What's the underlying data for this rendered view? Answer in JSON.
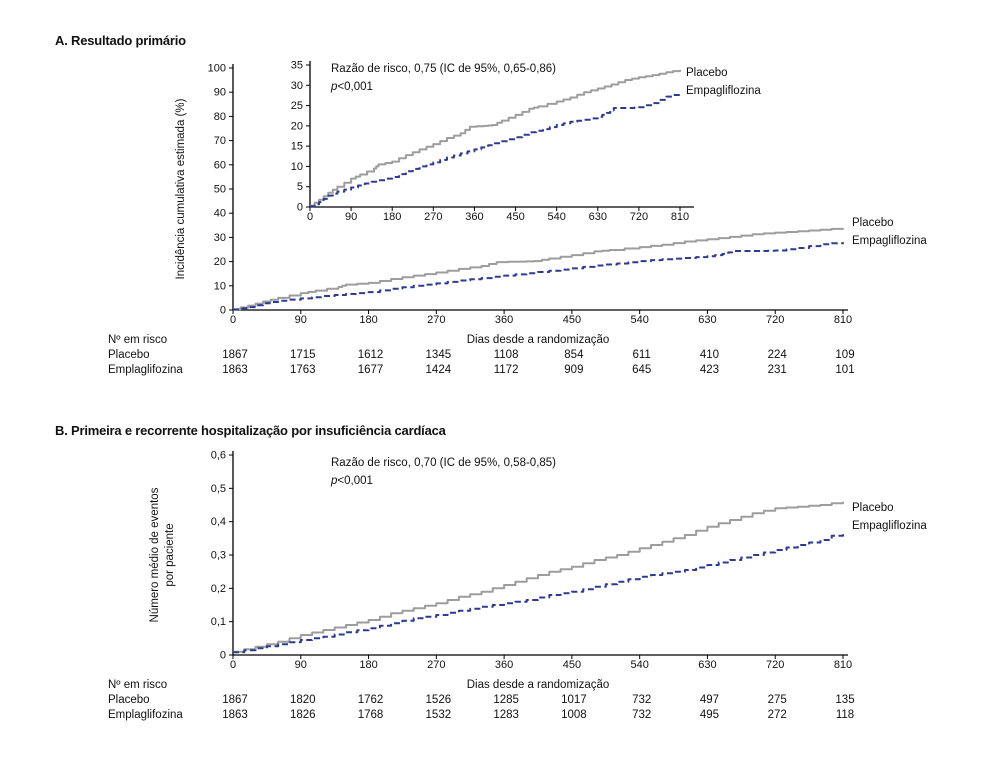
{
  "colors": {
    "placebo": "#9d9d9d",
    "empagliflozina": "#2e3a94",
    "axis": "#000000",
    "text": "#111111",
    "background": "#ffffff"
  },
  "chart_data": [
    {
      "id": "panel-a",
      "type": "line",
      "title": "A. Resultado primário",
      "xlabel": "Dias desde a randomização",
      "ylabel_lines": [
        "Incidência cumulativa estimada (%)"
      ],
      "xlim": [
        0,
        810
      ],
      "ylim": [
        0,
        100
      ],
      "xticks": [
        "0",
        "90",
        "180",
        "270",
        "360",
        "450",
        "540",
        "630",
        "720",
        "810"
      ],
      "yticks": [
        "0",
        "10",
        "20",
        "30",
        "40",
        "50",
        "60",
        "70",
        "80",
        "90",
        "100"
      ],
      "grid": false,
      "legend_position": "right-of-curve-ends",
      "annotation_lines": [
        "Razão de risco, 0,75 (IC de 95%, 0,65-0,86)",
        "p<0,001"
      ],
      "series": [
        {
          "name": "Placebo",
          "style": "solid",
          "color": "#9d9d9d",
          "points": [
            [
              0,
              0.3
            ],
            [
              20,
              1.8
            ],
            [
              40,
              3.5
            ],
            [
              60,
              5
            ],
            [
              90,
              7
            ],
            [
              110,
              8
            ],
            [
              140,
              9.5
            ],
            [
              150,
              10.5
            ],
            [
              180,
              11.2
            ],
            [
              210,
              12.8
            ],
            [
              240,
              14.2
            ],
            [
              270,
              15.5
            ],
            [
              300,
              17
            ],
            [
              330,
              18.2
            ],
            [
              350,
              19.8
            ],
            [
              380,
              20
            ],
            [
              400,
              20.2
            ],
            [
              420,
              21.3
            ],
            [
              450,
              22.7
            ],
            [
              480,
              24.2
            ],
            [
              500,
              24.8
            ],
            [
              540,
              26
            ],
            [
              570,
              27
            ],
            [
              600,
              28.3
            ],
            [
              630,
              29.2
            ],
            [
              660,
              30.2
            ],
            [
              690,
              31.3
            ],
            [
              720,
              32
            ],
            [
              750,
              32.5
            ],
            [
              780,
              33.2
            ],
            [
              810,
              33.8
            ]
          ]
        },
        {
          "name": "Empagliflozina",
          "style": "dashed",
          "color": "#2e3a94",
          "points": [
            [
              0,
              0.2
            ],
            [
              20,
              1.2
            ],
            [
              40,
              2.8
            ],
            [
              60,
              3.8
            ],
            [
              90,
              4.8
            ],
            [
              120,
              5.8
            ],
            [
              150,
              6.6
            ],
            [
              180,
              7.4
            ],
            [
              210,
              8.8
            ],
            [
              240,
              10
            ],
            [
              270,
              11
            ],
            [
              300,
              12.2
            ],
            [
              330,
              13.2
            ],
            [
              360,
              14.2
            ],
            [
              390,
              15.2
            ],
            [
              420,
              16.2
            ],
            [
              450,
              17.2
            ],
            [
              480,
              18.4
            ],
            [
              510,
              19.2
            ],
            [
              540,
              20.2
            ],
            [
              570,
              21
            ],
            [
              600,
              21.5
            ],
            [
              630,
              22.2
            ],
            [
              650,
              23.2
            ],
            [
              665,
              24.4
            ],
            [
              700,
              24.4
            ],
            [
              720,
              24.6
            ],
            [
              750,
              25.6
            ],
            [
              780,
              27.2
            ],
            [
              810,
              28
            ]
          ]
        }
      ],
      "inset": {
        "ylim": [
          0,
          35
        ],
        "yticks": [
          "0",
          "5",
          "10",
          "15",
          "20",
          "25",
          "30",
          "35"
        ],
        "xticks": [
          "0",
          "90",
          "180",
          "270",
          "360",
          "450",
          "540",
          "630",
          "720",
          "810"
        ]
      },
      "risk_table": {
        "header": "Nº em risco",
        "rows": [
          {
            "label": "Placebo",
            "values": [
              "1867",
              "1715",
              "1612",
              "1345",
              "1108",
              "854",
              "611",
              "410",
              "224",
              "109"
            ]
          },
          {
            "label": "Emplaglifozina",
            "values": [
              "1863",
              "1763",
              "1677",
              "1424",
              "1172",
              "909",
              "645",
              "423",
              "231",
              "101"
            ]
          }
        ]
      }
    },
    {
      "id": "panel-b",
      "type": "line",
      "title": "B. Primeira e recorrente hospitalização por insuficiência cardíaca",
      "xlabel": "Dias desde a randomização",
      "ylabel_lines": [
        "Número médio de eventos",
        "por paciente"
      ],
      "xlim": [
        0,
        810
      ],
      "ylim": [
        0,
        0.6
      ],
      "xticks": [
        "0",
        "90",
        "180",
        "270",
        "360",
        "450",
        "540",
        "630",
        "720",
        "810"
      ],
      "yticks": [
        "0",
        "0,1",
        "0,2",
        "0,3",
        "0,4",
        "0,5",
        "0,6"
      ],
      "grid": false,
      "legend_position": "right-of-curve-ends",
      "annotation_lines": [
        "Razão de risco, 0,70 (IC de 95%, 0,58-0,85)",
        "p<0,001"
      ],
      "series": [
        {
          "name": "Placebo",
          "style": "solid",
          "color": "#9d9d9d",
          "points": [
            [
              0,
              0.01
            ],
            [
              30,
              0.025
            ],
            [
              60,
              0.04
            ],
            [
              90,
              0.06
            ],
            [
              120,
              0.075
            ],
            [
              150,
              0.09
            ],
            [
              180,
              0.105
            ],
            [
              210,
              0.125
            ],
            [
              240,
              0.14
            ],
            [
              270,
              0.155
            ],
            [
              300,
              0.175
            ],
            [
              330,
              0.19
            ],
            [
              360,
              0.21
            ],
            [
              390,
              0.23
            ],
            [
              420,
              0.25
            ],
            [
              450,
              0.265
            ],
            [
              480,
              0.285
            ],
            [
              510,
              0.3
            ],
            [
              540,
              0.32
            ],
            [
              570,
              0.34
            ],
            [
              600,
              0.36
            ],
            [
              630,
              0.385
            ],
            [
              660,
              0.405
            ],
            [
              690,
              0.425
            ],
            [
              720,
              0.44
            ],
            [
              750,
              0.445
            ],
            [
              780,
              0.45
            ],
            [
              810,
              0.46
            ]
          ]
        },
        {
          "name": "Empagliflozina",
          "style": "dashed",
          "color": "#2e3a94",
          "points": [
            [
              0,
              0.008
            ],
            [
              30,
              0.02
            ],
            [
              60,
              0.032
            ],
            [
              90,
              0.045
            ],
            [
              120,
              0.055
            ],
            [
              150,
              0.068
            ],
            [
              180,
              0.08
            ],
            [
              210,
              0.095
            ],
            [
              240,
              0.11
            ],
            [
              270,
              0.12
            ],
            [
              300,
              0.133
            ],
            [
              330,
              0.145
            ],
            [
              360,
              0.155
            ],
            [
              390,
              0.165
            ],
            [
              420,
              0.18
            ],
            [
              450,
              0.19
            ],
            [
              480,
              0.205
            ],
            [
              510,
              0.22
            ],
            [
              540,
              0.235
            ],
            [
              570,
              0.245
            ],
            [
              600,
              0.255
            ],
            [
              630,
              0.27
            ],
            [
              660,
              0.285
            ],
            [
              690,
              0.3
            ],
            [
              720,
              0.315
            ],
            [
              750,
              0.33
            ],
            [
              780,
              0.345
            ],
            [
              810,
              0.37
            ]
          ]
        }
      ],
      "risk_table": {
        "header": "Nº em risco",
        "rows": [
          {
            "label": "Placebo",
            "values": [
              "1867",
              "1820",
              "1762",
              "1526",
              "1285",
              "1017",
              "732",
              "497",
              "275",
              "135"
            ]
          },
          {
            "label": "Emplaglifozina",
            "values": [
              "1863",
              "1826",
              "1768",
              "1532",
              "1283",
              "1008",
              "732",
              "495",
              "272",
              "118"
            ]
          }
        ]
      }
    }
  ]
}
